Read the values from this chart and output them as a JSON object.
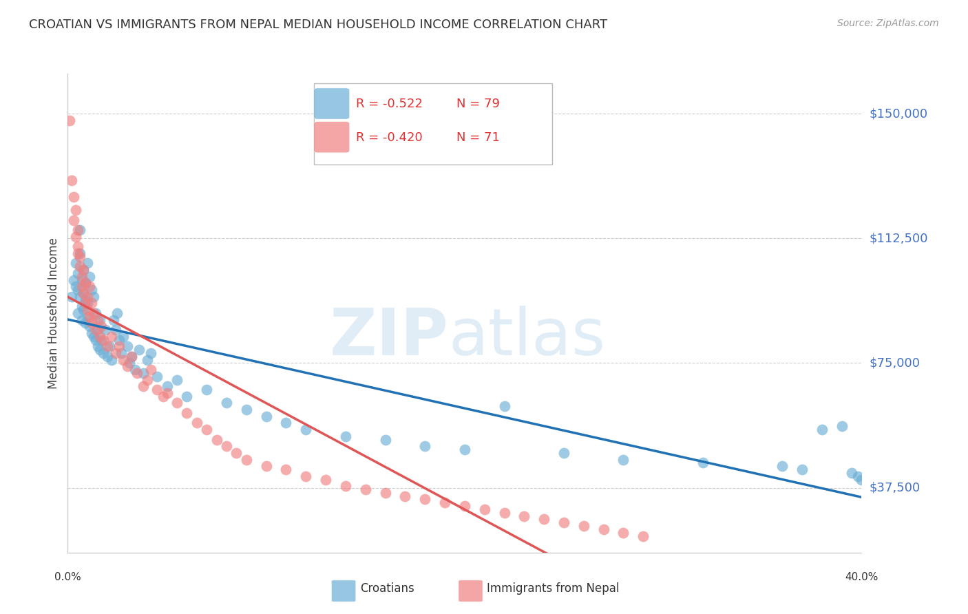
{
  "title": "CROATIAN VS IMMIGRANTS FROM NEPAL MEDIAN HOUSEHOLD INCOME CORRELATION CHART",
  "source": "Source: ZipAtlas.com",
  "ylabel": "Median Household Income",
  "y_ticks": [
    37500,
    75000,
    112500,
    150000
  ],
  "y_tick_labels": [
    "$37,500",
    "$75,000",
    "$112,500",
    "$150,000"
  ],
  "x_min": 0.0,
  "x_max": 0.4,
  "y_min": 18000,
  "y_max": 162000,
  "legend_line1_r": "R = -0.522",
  "legend_line1_n": "N = 79",
  "legend_line2_r": "R = -0.420",
  "legend_line2_n": "N = 71",
  "blue_color": "#6baed6",
  "pink_color": "#f08080",
  "trend_blue": "#2171b5",
  "trend_pink": "#e05555",
  "trend_pink_dashed": "#d4a0a0",
  "croatians_x": [
    0.002,
    0.003,
    0.004,
    0.004,
    0.005,
    0.005,
    0.005,
    0.006,
    0.006,
    0.006,
    0.007,
    0.007,
    0.007,
    0.008,
    0.008,
    0.008,
    0.009,
    0.009,
    0.009,
    0.01,
    0.01,
    0.01,
    0.011,
    0.011,
    0.012,
    0.012,
    0.013,
    0.013,
    0.014,
    0.014,
    0.015,
    0.015,
    0.016,
    0.016,
    0.017,
    0.018,
    0.019,
    0.02,
    0.021,
    0.022,
    0.023,
    0.024,
    0.025,
    0.026,
    0.027,
    0.028,
    0.03,
    0.031,
    0.032,
    0.034,
    0.036,
    0.038,
    0.04,
    0.042,
    0.045,
    0.05,
    0.055,
    0.06,
    0.07,
    0.08,
    0.09,
    0.1,
    0.11,
    0.12,
    0.14,
    0.16,
    0.18,
    0.2,
    0.22,
    0.25,
    0.28,
    0.32,
    0.36,
    0.37,
    0.38,
    0.39,
    0.395,
    0.398,
    0.4
  ],
  "croatians_y": [
    95000,
    100000,
    105000,
    98000,
    90000,
    97000,
    102000,
    108000,
    115000,
    95000,
    100000,
    92000,
    88000,
    103000,
    96000,
    91000,
    99000,
    94000,
    87000,
    105000,
    93000,
    89000,
    101000,
    86000,
    97000,
    84000,
    95000,
    83000,
    90000,
    82000,
    85000,
    80000,
    88000,
    79000,
    82000,
    78000,
    85000,
    77000,
    80000,
    76000,
    88000,
    85000,
    90000,
    82000,
    78000,
    83000,
    80000,
    75000,
    77000,
    73000,
    79000,
    72000,
    76000,
    78000,
    71000,
    68000,
    70000,
    65000,
    67000,
    63000,
    61000,
    59000,
    57000,
    55000,
    53000,
    52000,
    50000,
    49000,
    62000,
    48000,
    46000,
    45000,
    44000,
    43000,
    55000,
    56000,
    42000,
    41000,
    40000
  ],
  "nepal_x": [
    0.001,
    0.002,
    0.003,
    0.003,
    0.004,
    0.004,
    0.005,
    0.005,
    0.005,
    0.006,
    0.006,
    0.007,
    0.007,
    0.008,
    0.008,
    0.009,
    0.009,
    0.01,
    0.01,
    0.011,
    0.011,
    0.012,
    0.012,
    0.013,
    0.014,
    0.015,
    0.016,
    0.017,
    0.018,
    0.02,
    0.022,
    0.024,
    0.026,
    0.028,
    0.03,
    0.032,
    0.035,
    0.038,
    0.04,
    0.042,
    0.045,
    0.048,
    0.05,
    0.055,
    0.06,
    0.065,
    0.07,
    0.075,
    0.08,
    0.085,
    0.09,
    0.1,
    0.11,
    0.12,
    0.13,
    0.14,
    0.15,
    0.16,
    0.17,
    0.18,
    0.19,
    0.2,
    0.21,
    0.22,
    0.23,
    0.24,
    0.25,
    0.26,
    0.27,
    0.28,
    0.29
  ],
  "nepal_y": [
    148000,
    130000,
    125000,
    118000,
    121000,
    113000,
    115000,
    108000,
    110000,
    107000,
    104000,
    101000,
    98000,
    103000,
    96000,
    99000,
    93000,
    95000,
    91000,
    98000,
    89000,
    93000,
    87000,
    90000,
    85000,
    88000,
    83000,
    86000,
    82000,
    80000,
    83000,
    78000,
    80000,
    76000,
    74000,
    77000,
    72000,
    68000,
    70000,
    73000,
    67000,
    65000,
    66000,
    63000,
    60000,
    57000,
    55000,
    52000,
    50000,
    48000,
    46000,
    44000,
    43000,
    41000,
    40000,
    38000,
    37000,
    36000,
    35000,
    34000,
    33000,
    32000,
    31000,
    30000,
    29000,
    28000,
    27000,
    26000,
    25000,
    24000,
    23000
  ]
}
